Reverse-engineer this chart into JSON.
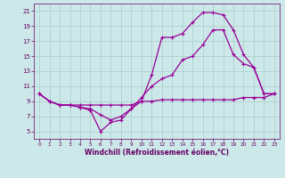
{
  "xlabel": "Windchill (Refroidissement éolien,°C)",
  "bg_color": "#cce8e8",
  "grid_color": "#aacccc",
  "line_color": "#990099",
  "text_color": "#660066",
  "xlim": [
    -0.5,
    23.5
  ],
  "ylim": [
    4,
    22
  ],
  "xticks": [
    0,
    1,
    2,
    3,
    4,
    5,
    6,
    7,
    8,
    9,
    10,
    11,
    12,
    13,
    14,
    15,
    16,
    17,
    18,
    19,
    20,
    21,
    22,
    23
  ],
  "yticks": [
    5,
    7,
    9,
    11,
    13,
    15,
    17,
    19,
    21
  ],
  "curve1_x": [
    0,
    1,
    2,
    3,
    4,
    5,
    6,
    7,
    8,
    9,
    10,
    11,
    12,
    13,
    14,
    15,
    16,
    17,
    18,
    19,
    20,
    21,
    22,
    23
  ],
  "curve1_y": [
    10.0,
    9.0,
    8.5,
    8.5,
    8.2,
    7.8,
    5.0,
    6.2,
    6.5,
    8.0,
    9.0,
    12.5,
    17.5,
    17.5,
    18.0,
    19.5,
    20.8,
    20.8,
    20.5,
    18.5,
    15.2,
    13.5,
    10.0,
    10.0
  ],
  "curve2_x": [
    0,
    1,
    2,
    3,
    4,
    5,
    6,
    7,
    8,
    9,
    10,
    11,
    12,
    13,
    14,
    15,
    16,
    17,
    18,
    19,
    20,
    21,
    22,
    23
  ],
  "curve2_y": [
    10.0,
    9.0,
    8.5,
    8.5,
    8.2,
    8.0,
    7.2,
    6.5,
    7.0,
    8.0,
    9.5,
    11.0,
    12.0,
    12.5,
    14.5,
    15.0,
    16.5,
    18.5,
    18.5,
    15.2,
    14.0,
    13.5,
    10.0,
    10.0
  ],
  "curve3_x": [
    0,
    1,
    2,
    3,
    4,
    5,
    6,
    7,
    8,
    9,
    10,
    11,
    12,
    13,
    14,
    15,
    16,
    17,
    18,
    19,
    20,
    21,
    22,
    23
  ],
  "curve3_y": [
    10.0,
    9.0,
    8.5,
    8.5,
    8.5,
    8.5,
    8.5,
    8.5,
    8.5,
    8.5,
    9.0,
    9.0,
    9.2,
    9.2,
    9.2,
    9.2,
    9.2,
    9.2,
    9.2,
    9.2,
    9.5,
    9.5,
    9.5,
    10.0
  ]
}
